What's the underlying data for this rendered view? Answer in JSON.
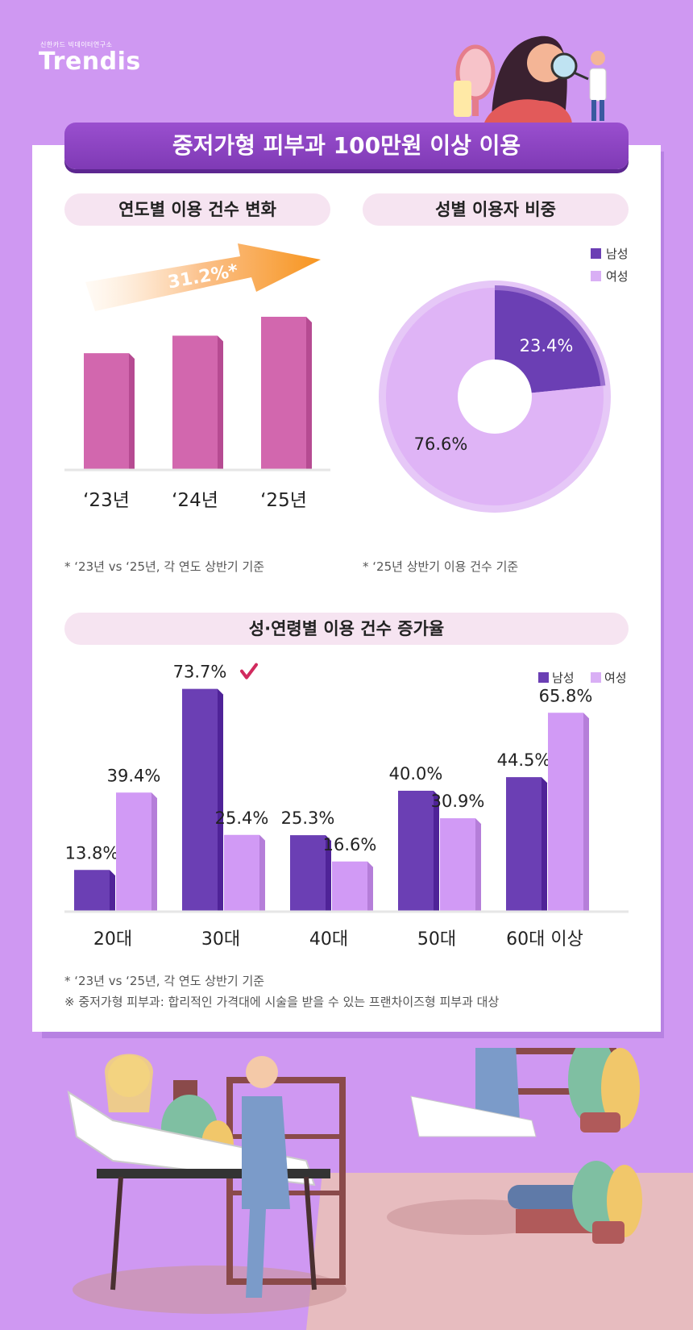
{
  "brand": {
    "small_text": "신한카드 빅데이터연구소",
    "name": "Trendis"
  },
  "title": "중저가형 피부과 100만원 이상 이용",
  "colors": {
    "male": "#6b3fb4",
    "female": "#d19af5",
    "bar_pink": "#d267ae"
  },
  "section1": {
    "heading": "연도별 이용 건수 변화",
    "growth_label": "31.2%*",
    "note": "* ‘23년 vs ‘25년, 각 연도 상반기 기준",
    "chart_data": {
      "type": "bar",
      "categories": [
        "‘23년",
        "‘24년",
        "‘25년"
      ],
      "values": [
        100,
        115,
        131.2
      ],
      "ylim": [
        0,
        145
      ],
      "note": "relative values, +31.2% from '23 to '25"
    }
  },
  "section2": {
    "heading": "성별 이용자 비중",
    "legend": {
      "male": "남성",
      "female": "여성"
    },
    "note": "* ‘25년 상반기 이용 건수 기준",
    "chart_data": {
      "type": "pie",
      "labels": [
        "남성",
        "여성"
      ],
      "values": [
        23.4,
        76.6
      ],
      "value_labels": [
        "23.4%",
        "76.6%"
      ]
    }
  },
  "section3": {
    "heading": "성·연령별 이용 건수 증가율",
    "legend": {
      "male": "남성",
      "female": "여성"
    },
    "note1": "* ‘23년 vs ‘25년, 각 연도 상반기 기준",
    "note2": "※ 중저가형 피부과: 합리적인 가격대에 시술을 받을 수 있는 프랜차이즈형 피부과 대상",
    "chart_data": {
      "type": "bar",
      "categories": [
        "20대",
        "30대",
        "40대",
        "50대",
        "60대 이상"
      ],
      "series": [
        {
          "name": "남성",
          "values": [
            13.8,
            73.7,
            25.3,
            40.0,
            44.5
          ],
          "labels": [
            "13.8%",
            "73.7%",
            "25.3%",
            "40.0%",
            "44.5%"
          ]
        },
        {
          "name": "여성",
          "values": [
            39.4,
            25.4,
            16.6,
            30.9,
            65.8
          ],
          "labels": [
            "39.4%",
            "25.4%",
            "16.6%",
            "30.9%",
            "65.8%"
          ]
        }
      ],
      "ylim": [
        0,
        80
      ],
      "highlight": "30대 남성"
    }
  }
}
